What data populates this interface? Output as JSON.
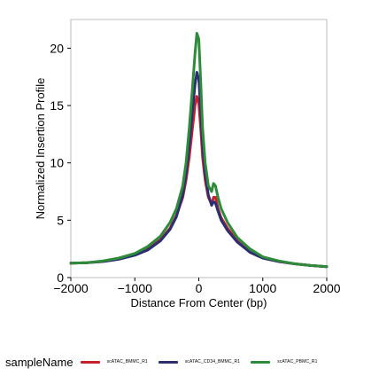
{
  "chart_data": {
    "type": "line",
    "xlabel": "Distance From Center (bp)",
    "ylabel": "Normalized Insertion Profile",
    "xlim": [
      -2000,
      2000
    ],
    "ylim": [
      0,
      22.5
    ],
    "xticks": [
      -2000,
      -1000,
      0,
      1000,
      2000
    ],
    "xtick_labels": [
      "−2000",
      "−1000",
      "0",
      "1000",
      "2000"
    ],
    "yticks": [
      0,
      5,
      10,
      15,
      20
    ],
    "ytick_labels": [
      "0",
      "5",
      "10",
      "15",
      "20"
    ],
    "grid": false,
    "legend": {
      "title": "sampleName",
      "placement": "bottom"
    },
    "series": [
      {
        "name": "scATAC_BMMC_R1",
        "color": "#c8202a",
        "points": [
          [
            -2000,
            1.25
          ],
          [
            -1750,
            1.3
          ],
          [
            -1500,
            1.4
          ],
          [
            -1250,
            1.6
          ],
          [
            -1000,
            2.0
          ],
          [
            -800,
            2.5
          ],
          [
            -600,
            3.3
          ],
          [
            -450,
            4.3
          ],
          [
            -350,
            5.4
          ],
          [
            -250,
            7.0
          ],
          [
            -200,
            8.5
          ],
          [
            -150,
            10.5
          ],
          [
            -100,
            13.0
          ],
          [
            -60,
            15.0
          ],
          [
            -30,
            15.8
          ],
          [
            0,
            15.2
          ],
          [
            30,
            13.0
          ],
          [
            60,
            10.5
          ],
          [
            100,
            8.5
          ],
          [
            150,
            7.0
          ],
          [
            200,
            6.4
          ],
          [
            230,
            7.0
          ],
          [
            260,
            7.0
          ],
          [
            300,
            6.0
          ],
          [
            350,
            5.2
          ],
          [
            450,
            4.3
          ],
          [
            600,
            3.2
          ],
          [
            800,
            2.2
          ],
          [
            1000,
            1.7
          ],
          [
            1250,
            1.4
          ],
          [
            1500,
            1.2
          ],
          [
            1750,
            1.05
          ],
          [
            2000,
            0.95
          ]
        ]
      },
      {
        "name": "scATAC_CD34_BMMC_R1",
        "color": "#2b2e72",
        "points": [
          [
            -2000,
            1.25
          ],
          [
            -1750,
            1.3
          ],
          [
            -1500,
            1.4
          ],
          [
            -1250,
            1.6
          ],
          [
            -1000,
            1.95
          ],
          [
            -800,
            2.4
          ],
          [
            -600,
            3.2
          ],
          [
            -450,
            4.2
          ],
          [
            -350,
            5.3
          ],
          [
            -250,
            7.2
          ],
          [
            -200,
            9.0
          ],
          [
            -150,
            11.5
          ],
          [
            -100,
            14.5
          ],
          [
            -60,
            16.8
          ],
          [
            -30,
            17.9
          ],
          [
            0,
            17.3
          ],
          [
            30,
            14.5
          ],
          [
            60,
            11.5
          ],
          [
            100,
            9.0
          ],
          [
            150,
            7.2
          ],
          [
            200,
            6.3
          ],
          [
            230,
            6.6
          ],
          [
            260,
            6.5
          ],
          [
            300,
            5.8
          ],
          [
            350,
            5.0
          ],
          [
            450,
            4.1
          ],
          [
            600,
            3.1
          ],
          [
            800,
            2.2
          ],
          [
            1000,
            1.7
          ],
          [
            1250,
            1.4
          ],
          [
            1500,
            1.2
          ],
          [
            1750,
            1.05
          ],
          [
            2000,
            0.95
          ]
        ]
      },
      {
        "name": "scATAC_PBMC_R1",
        "color": "#2e8b3a",
        "points": [
          [
            -2000,
            1.25
          ],
          [
            -1750,
            1.3
          ],
          [
            -1500,
            1.45
          ],
          [
            -1250,
            1.7
          ],
          [
            -1000,
            2.1
          ],
          [
            -800,
            2.7
          ],
          [
            -600,
            3.6
          ],
          [
            -450,
            4.8
          ],
          [
            -350,
            6.0
          ],
          [
            -250,
            8.0
          ],
          [
            -200,
            10.0
          ],
          [
            -150,
            13.0
          ],
          [
            -100,
            16.5
          ],
          [
            -60,
            19.5
          ],
          [
            -30,
            21.3
          ],
          [
            0,
            20.8
          ],
          [
            30,
            17.0
          ],
          [
            60,
            13.0
          ],
          [
            100,
            10.0
          ],
          [
            150,
            8.0
          ],
          [
            200,
            7.5
          ],
          [
            230,
            8.2
          ],
          [
            260,
            8.0
          ],
          [
            300,
            7.0
          ],
          [
            350,
            6.0
          ],
          [
            450,
            4.8
          ],
          [
            600,
            3.5
          ],
          [
            800,
            2.5
          ],
          [
            1000,
            1.8
          ],
          [
            1250,
            1.45
          ],
          [
            1500,
            1.2
          ],
          [
            1750,
            1.05
          ],
          [
            2000,
            0.95
          ]
        ]
      }
    ]
  }
}
